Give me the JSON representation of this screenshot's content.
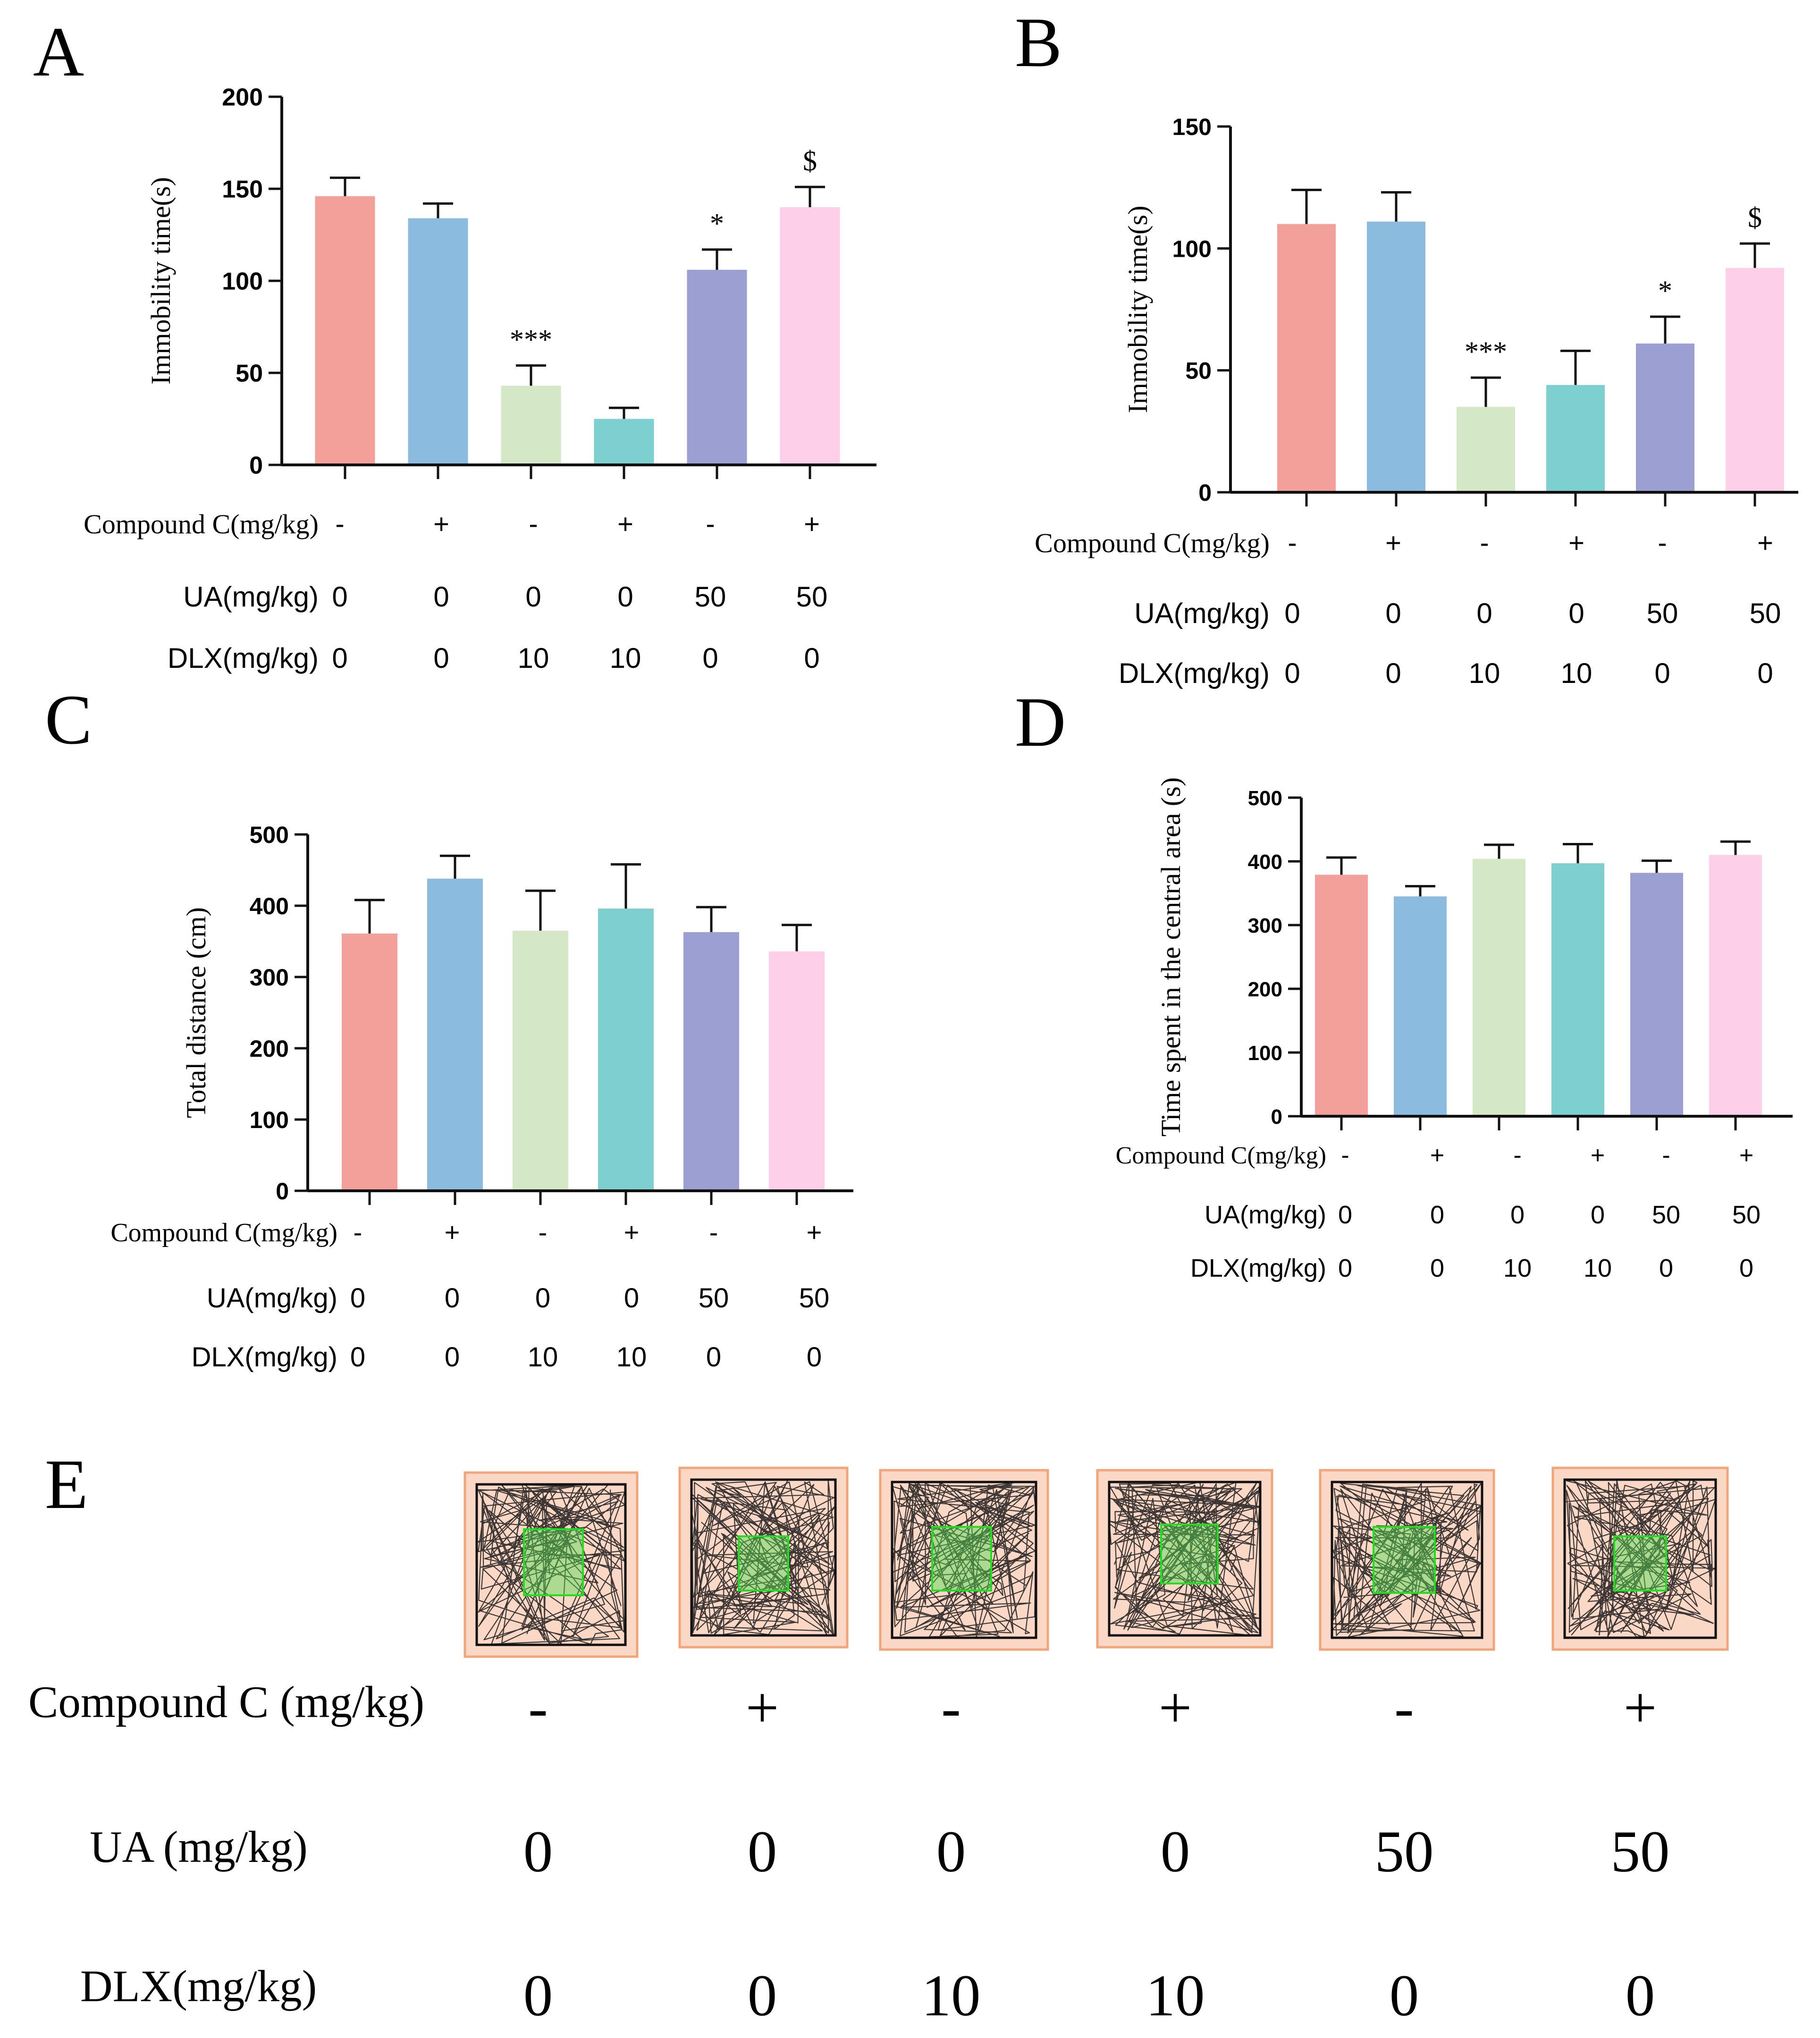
{
  "colors": [
    "#f4a09a",
    "#8bbce0",
    "#d4e8c8",
    "#7ecfd0",
    "#9b9fd2",
    "#fdcfe8"
  ],
  "chart_data": [
    {
      "panel": "A",
      "type": "bar",
      "ylabel": "Immobility time(s)",
      "yticks": [
        0,
        50,
        100,
        150,
        200
      ],
      "ylim": [
        0,
        200
      ],
      "values": [
        146,
        134,
        43,
        25,
        106,
        140
      ],
      "errors": [
        10,
        8,
        11,
        6,
        11,
        11
      ],
      "annotations": [
        "",
        "",
        "***",
        "",
        "*",
        "$"
      ],
      "rows": [
        {
          "label": "Compound C(mg/kg)",
          "values": [
            "-",
            "+",
            "-",
            "+",
            "-",
            "+"
          ]
        },
        {
          "label": "UA(mg/kg)",
          "values": [
            "0",
            "0",
            "0",
            "0",
            "50",
            "50"
          ]
        },
        {
          "label": "DLX(mg/kg)",
          "values": [
            "0",
            "0",
            "10",
            "10",
            "0",
            "0"
          ]
        }
      ]
    },
    {
      "panel": "B",
      "type": "bar",
      "ylabel": "Immobility time(s)",
      "yticks": [
        0,
        50,
        100,
        150
      ],
      "ylim": [
        0,
        150
      ],
      "values": [
        110,
        111,
        35,
        44,
        61,
        92
      ],
      "errors": [
        14,
        12,
        12,
        14,
        11,
        10
      ],
      "annotations": [
        "",
        "",
        "***",
        "",
        "*",
        "$"
      ],
      "rows": [
        {
          "label": "Compound C(mg/kg)",
          "values": [
            "-",
            "+",
            "-",
            "+",
            "-",
            "+"
          ]
        },
        {
          "label": "UA(mg/kg)",
          "values": [
            "0",
            "0",
            "0",
            "0",
            "50",
            "50"
          ]
        },
        {
          "label": "DLX(mg/kg)",
          "values": [
            "0",
            "0",
            "10",
            "10",
            "0",
            "0"
          ]
        }
      ]
    },
    {
      "panel": "C",
      "type": "bar",
      "ylabel": "Total distance (cm)",
      "yticks": [
        0,
        100,
        200,
        300,
        400,
        500
      ],
      "ylim": [
        0,
        500
      ],
      "values": [
        361,
        438,
        365,
        396,
        363,
        336
      ],
      "errors": [
        47,
        32,
        56,
        62,
        35,
        37
      ],
      "annotations": [
        "",
        "",
        "",
        "",
        "",
        ""
      ],
      "rows": [
        {
          "label": "Compound C(mg/kg)",
          "values": [
            "-",
            "+",
            "-",
            "+",
            "-",
            "+"
          ]
        },
        {
          "label": "UA(mg/kg)",
          "values": [
            "0",
            "0",
            "0",
            "0",
            "50",
            "50"
          ]
        },
        {
          "label": "DLX(mg/kg)",
          "values": [
            "0",
            "0",
            "10",
            "10",
            "0",
            "0"
          ]
        }
      ]
    },
    {
      "panel": "D",
      "type": "bar",
      "ylabel": "Time spent in the central area (s)",
      "yticks": [
        0,
        100,
        200,
        300,
        400,
        500
      ],
      "ylim": [
        0,
        500
      ],
      "values": [
        379,
        345,
        404,
        397,
        382,
        410
      ],
      "errors": [
        27,
        16,
        22,
        30,
        19,
        21
      ],
      "annotations": [
        "",
        "",
        "",
        "",
        "",
        ""
      ],
      "rows": [
        {
          "label": "Compound C(mg/kg)",
          "values": [
            "-",
            "+",
            "-",
            "+",
            "-",
            "+"
          ]
        },
        {
          "label": "UA(mg/kg)",
          "values": [
            "0",
            "0",
            "0",
            "0",
            "50",
            "50"
          ]
        },
        {
          "label": "DLX(mg/kg)",
          "values": [
            "0",
            "0",
            "10",
            "10",
            "0",
            "0"
          ]
        }
      ]
    }
  ],
  "panel_e": {
    "label": "E",
    "rows": [
      {
        "label": "Compound C (mg/kg)",
        "values": [
          "-",
          "+",
          "-",
          "+",
          "-",
          "+"
        ]
      },
      {
        "label": "UA (mg/kg)",
        "values": [
          "0",
          "0",
          "0",
          "0",
          "50",
          "50"
        ]
      },
      {
        "label": "DLX(mg/kg)",
        "values": [
          "0",
          "0",
          "10",
          "10",
          "0",
          "0"
        ]
      }
    ]
  }
}
